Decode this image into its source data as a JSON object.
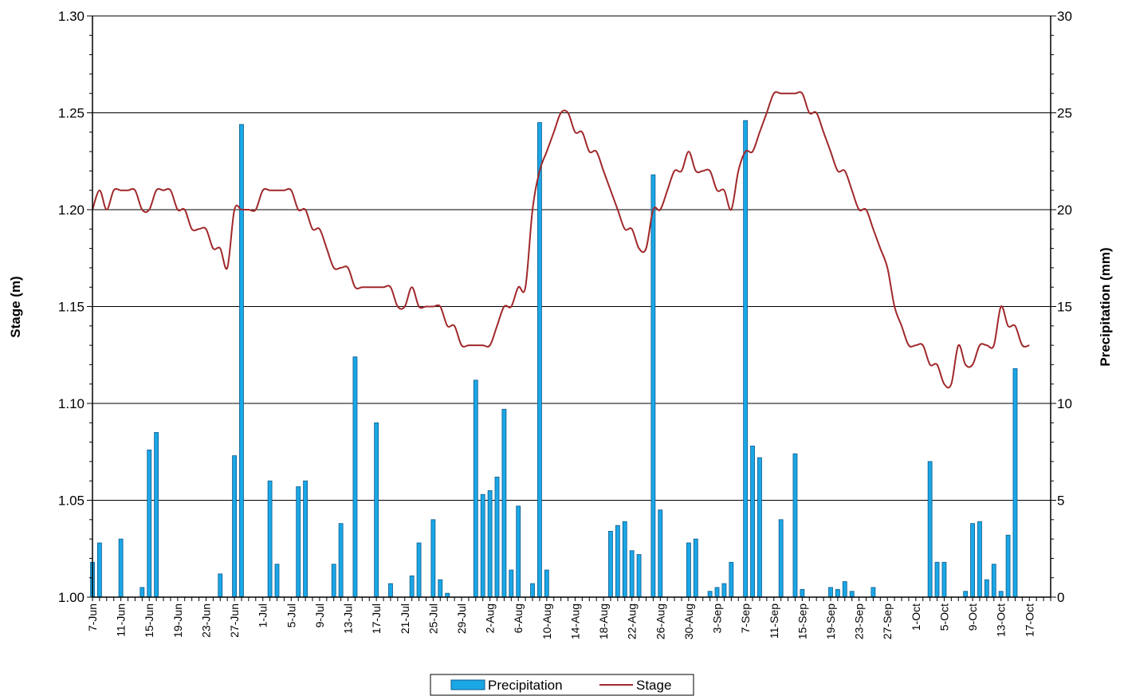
{
  "chart_data": {
    "type": "bar",
    "title": "",
    "ylabel": "Stage (m)",
    "y2label": "Precipitation (mm)",
    "ylim": [
      1.0,
      1.3
    ],
    "y2lim": [
      0,
      30
    ],
    "yticks": [
      "1.00",
      "1.05",
      "1.10",
      "1.15",
      "1.20",
      "1.25",
      "1.30"
    ],
    "y2ticks": [
      "0",
      "5",
      "10",
      "15",
      "20",
      "25",
      "30"
    ],
    "grid": true,
    "legend_position": "bottom-center",
    "x_start": "7-Jun",
    "x_end": "20-Oct",
    "x_tick_labels": [
      "7-Jun",
      "11-Jun",
      "15-Jun",
      "19-Jun",
      "23-Jun",
      "27-Jun",
      "1-Jul",
      "5-Jul",
      "9-Jul",
      "13-Jul",
      "17-Jul",
      "21-Jul",
      "25-Jul",
      "29-Jul",
      "2-Aug",
      "6-Aug",
      "10-Aug",
      "14-Aug",
      "18-Aug",
      "22-Aug",
      "26-Aug",
      "30-Aug",
      "3-Sep",
      "7-Sep",
      "11-Sep",
      "15-Sep",
      "19-Sep",
      "23-Sep",
      "27-Sep",
      "1-Oct",
      "5-Oct",
      "9-Oct",
      "13-Oct",
      "17-Oct"
    ],
    "series": [
      {
        "name": "Precipitation",
        "type": "bar",
        "axis": "right",
        "color": "#1aa7e6",
        "border": "#0d5a8c",
        "points": [
          [
            "7-Jun",
            1.8
          ],
          [
            "8-Jun",
            2.8
          ],
          [
            "11-Jun",
            3.0
          ],
          [
            "14-Jun",
            0.5
          ],
          [
            "15-Jun",
            7.6
          ],
          [
            "16-Jun",
            8.5
          ],
          [
            "25-Jun",
            1.2
          ],
          [
            "27-Jun",
            7.3
          ],
          [
            "28-Jun",
            24.4
          ],
          [
            "2-Jul",
            6.0
          ],
          [
            "3-Jul",
            1.7
          ],
          [
            "6-Jul",
            5.7
          ],
          [
            "7-Jul",
            6.0
          ],
          [
            "11-Jul",
            1.7
          ],
          [
            "12-Jul",
            3.8
          ],
          [
            "14-Jul",
            12.4
          ],
          [
            "17-Jul",
            9.0
          ],
          [
            "19-Jul",
            0.7
          ],
          [
            "22-Jul",
            1.1
          ],
          [
            "23-Jul",
            2.8
          ],
          [
            "25-Jul",
            4.0
          ],
          [
            "26-Jul",
            0.9
          ],
          [
            "27-Jul",
            0.2
          ],
          [
            "31-Jul",
            11.2
          ],
          [
            "1-Aug",
            5.3
          ],
          [
            "2-Aug",
            5.5
          ],
          [
            "3-Aug",
            6.2
          ],
          [
            "4-Aug",
            9.7
          ],
          [
            "5-Aug",
            1.4
          ],
          [
            "6-Aug",
            4.7
          ],
          [
            "8-Aug",
            0.7
          ],
          [
            "9-Aug",
            24.5
          ],
          [
            "10-Aug",
            1.4
          ],
          [
            "19-Aug",
            3.4
          ],
          [
            "20-Aug",
            3.7
          ],
          [
            "21-Aug",
            3.9
          ],
          [
            "22-Aug",
            2.4
          ],
          [
            "23-Aug",
            2.2
          ],
          [
            "25-Aug",
            21.8
          ],
          [
            "26-Aug",
            4.5
          ],
          [
            "30-Aug",
            2.8
          ],
          [
            "31-Aug",
            3.0
          ],
          [
            "2-Sep",
            0.3
          ],
          [
            "3-Sep",
            0.5
          ],
          [
            "4-Sep",
            0.7
          ],
          [
            "5-Sep",
            1.8
          ],
          [
            "7-Sep",
            24.6
          ],
          [
            "8-Sep",
            7.8
          ],
          [
            "9-Sep",
            7.2
          ],
          [
            "12-Sep",
            4.0
          ],
          [
            "14-Sep",
            7.4
          ],
          [
            "15-Sep",
            0.4
          ],
          [
            "19-Sep",
            0.5
          ],
          [
            "20-Sep",
            0.4
          ],
          [
            "21-Sep",
            0.8
          ],
          [
            "22-Sep",
            0.3
          ],
          [
            "25-Sep",
            0.5
          ],
          [
            "3-Oct",
            7.0
          ],
          [
            "4-Oct",
            1.8
          ],
          [
            "5-Oct",
            1.8
          ],
          [
            "8-Oct",
            0.3
          ],
          [
            "9-Oct",
            3.8
          ],
          [
            "10-Oct",
            3.9
          ],
          [
            "11-Oct",
            0.9
          ],
          [
            "12-Oct",
            1.7
          ],
          [
            "13-Oct",
            0.3
          ],
          [
            "14-Oct",
            3.2
          ],
          [
            "15-Oct",
            11.8
          ]
        ]
      },
      {
        "name": "Stage",
        "type": "line",
        "axis": "left",
        "color": "#a0282a",
        "points": [
          [
            "7-Jun",
            1.2
          ],
          [
            "8-Jun",
            1.21
          ],
          [
            "9-Jun",
            1.2
          ],
          [
            "10-Jun",
            1.21
          ],
          [
            "11-Jun",
            1.21
          ],
          [
            "12-Jun",
            1.21
          ],
          [
            "13-Jun",
            1.21
          ],
          [
            "14-Jun",
            1.2
          ],
          [
            "15-Jun",
            1.2
          ],
          [
            "16-Jun",
            1.21
          ],
          [
            "17-Jun",
            1.21
          ],
          [
            "18-Jun",
            1.21
          ],
          [
            "19-Jun",
            1.2
          ],
          [
            "20-Jun",
            1.2
          ],
          [
            "21-Jun",
            1.19
          ],
          [
            "22-Jun",
            1.19
          ],
          [
            "23-Jun",
            1.19
          ],
          [
            "24-Jun",
            1.18
          ],
          [
            "25-Jun",
            1.18
          ],
          [
            "26-Jun",
            1.17
          ],
          [
            "27-Jun",
            1.2
          ],
          [
            "28-Jun",
            1.2
          ],
          [
            "29-Jun",
            1.2
          ],
          [
            "30-Jun",
            1.2
          ],
          [
            "1-Jul",
            1.21
          ],
          [
            "2-Jul",
            1.21
          ],
          [
            "3-Jul",
            1.21
          ],
          [
            "4-Jul",
            1.21
          ],
          [
            "5-Jul",
            1.21
          ],
          [
            "6-Jul",
            1.2
          ],
          [
            "7-Jul",
            1.2
          ],
          [
            "8-Jul",
            1.19
          ],
          [
            "9-Jul",
            1.19
          ],
          [
            "10-Jul",
            1.18
          ],
          [
            "11-Jul",
            1.17
          ],
          [
            "12-Jul",
            1.17
          ],
          [
            "13-Jul",
            1.17
          ],
          [
            "14-Jul",
            1.16
          ],
          [
            "15-Jul",
            1.16
          ],
          [
            "16-Jul",
            1.16
          ],
          [
            "17-Jul",
            1.16
          ],
          [
            "18-Jul",
            1.16
          ],
          [
            "19-Jul",
            1.16
          ],
          [
            "20-Jul",
            1.15
          ],
          [
            "21-Jul",
            1.15
          ],
          [
            "22-Jul",
            1.16
          ],
          [
            "23-Jul",
            1.15
          ],
          [
            "24-Jul",
            1.15
          ],
          [
            "25-Jul",
            1.15
          ],
          [
            "26-Jul",
            1.15
          ],
          [
            "27-Jul",
            1.14
          ],
          [
            "28-Jul",
            1.14
          ],
          [
            "29-Jul",
            1.13
          ],
          [
            "30-Jul",
            1.13
          ],
          [
            "31-Jul",
            1.13
          ],
          [
            "1-Aug",
            1.13
          ],
          [
            "2-Aug",
            1.13
          ],
          [
            "3-Aug",
            1.14
          ],
          [
            "4-Aug",
            1.15
          ],
          [
            "5-Aug",
            1.15
          ],
          [
            "6-Aug",
            1.16
          ],
          [
            "7-Aug",
            1.16
          ],
          [
            "8-Aug",
            1.2
          ],
          [
            "9-Aug",
            1.22
          ],
          [
            "10-Aug",
            1.23
          ],
          [
            "11-Aug",
            1.24
          ],
          [
            "12-Aug",
            1.25
          ],
          [
            "13-Aug",
            1.25
          ],
          [
            "14-Aug",
            1.24
          ],
          [
            "15-Aug",
            1.24
          ],
          [
            "16-Aug",
            1.23
          ],
          [
            "17-Aug",
            1.23
          ],
          [
            "18-Aug",
            1.22
          ],
          [
            "19-Aug",
            1.21
          ],
          [
            "20-Aug",
            1.2
          ],
          [
            "21-Aug",
            1.19
          ],
          [
            "22-Aug",
            1.19
          ],
          [
            "23-Aug",
            1.18
          ],
          [
            "24-Aug",
            1.18
          ],
          [
            "25-Aug",
            1.2
          ],
          [
            "26-Aug",
            1.2
          ],
          [
            "27-Aug",
            1.21
          ],
          [
            "28-Aug",
            1.22
          ],
          [
            "29-Aug",
            1.22
          ],
          [
            "30-Aug",
            1.23
          ],
          [
            "31-Aug",
            1.22
          ],
          [
            "1-Sep",
            1.22
          ],
          [
            "2-Sep",
            1.22
          ],
          [
            "3-Sep",
            1.21
          ],
          [
            "4-Sep",
            1.21
          ],
          [
            "5-Sep",
            1.2
          ],
          [
            "6-Sep",
            1.22
          ],
          [
            "7-Sep",
            1.23
          ],
          [
            "8-Sep",
            1.23
          ],
          [
            "9-Sep",
            1.24
          ],
          [
            "10-Sep",
            1.25
          ],
          [
            "11-Sep",
            1.26
          ],
          [
            "12-Sep",
            1.26
          ],
          [
            "13-Sep",
            1.26
          ],
          [
            "14-Sep",
            1.26
          ],
          [
            "15-Sep",
            1.26
          ],
          [
            "16-Sep",
            1.25
          ],
          [
            "17-Sep",
            1.25
          ],
          [
            "18-Sep",
            1.24
          ],
          [
            "19-Sep",
            1.23
          ],
          [
            "20-Sep",
            1.22
          ],
          [
            "21-Sep",
            1.22
          ],
          [
            "22-Sep",
            1.21
          ],
          [
            "23-Sep",
            1.2
          ],
          [
            "24-Sep",
            1.2
          ],
          [
            "25-Sep",
            1.19
          ],
          [
            "26-Sep",
            1.18
          ],
          [
            "27-Sep",
            1.17
          ],
          [
            "28-Sep",
            1.15
          ],
          [
            "29-Sep",
            1.14
          ],
          [
            "30-Sep",
            1.13
          ],
          [
            "1-Oct",
            1.13
          ],
          [
            "2-Oct",
            1.13
          ],
          [
            "3-Oct",
            1.12
          ],
          [
            "4-Oct",
            1.12
          ],
          [
            "5-Oct",
            1.11
          ],
          [
            "6-Oct",
            1.11
          ],
          [
            "7-Oct",
            1.13
          ],
          [
            "8-Oct",
            1.12
          ],
          [
            "9-Oct",
            1.12
          ],
          [
            "10-Oct",
            1.13
          ],
          [
            "11-Oct",
            1.13
          ],
          [
            "12-Oct",
            1.13
          ],
          [
            "13-Oct",
            1.15
          ],
          [
            "14-Oct",
            1.14
          ],
          [
            "15-Oct",
            1.14
          ],
          [
            "16-Oct",
            1.13
          ],
          [
            "17-Oct",
            1.13
          ]
        ]
      }
    ]
  }
}
